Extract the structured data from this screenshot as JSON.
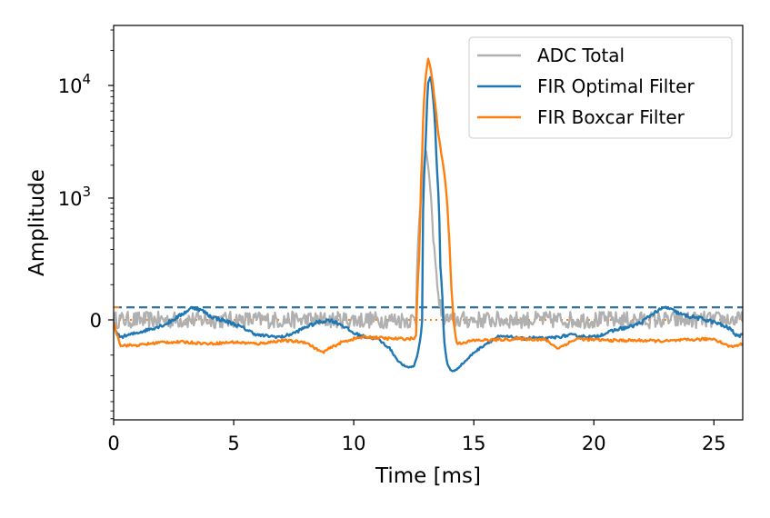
{
  "chart_data": {
    "type": "line",
    "title": "",
    "xlabel": "Time [ms]",
    "ylabel": "Amplitude",
    "xlim": [
      0,
      26.2
    ],
    "yscale": "symlog",
    "yticks": [
      {
        "value": 0,
        "label": "0"
      },
      {
        "value": 1000,
        "label": "10",
        "exp": "3"
      },
      {
        "value": 10000,
        "label": "10",
        "exp": "4"
      }
    ],
    "xticks": [
      {
        "value": 0,
        "label": "0"
      },
      {
        "value": 5,
        "label": "5"
      },
      {
        "value": 10,
        "label": "10"
      },
      {
        "value": 15,
        "label": "15"
      },
      {
        "value": 20,
        "label": "20"
      },
      {
        "value": 25,
        "label": "25"
      }
    ],
    "legend_position": "top-right",
    "series": [
      {
        "name": "ADC Total",
        "color": "#b0b0b0",
        "noise_amp": 18,
        "baseline": 0,
        "x": [
          0,
          12.6,
          12.85,
          13.0,
          13.15,
          13.3,
          13.5,
          13.7,
          13.9,
          26.2
        ],
        "y": [
          0,
          0,
          1200,
          2800,
          1500,
          400,
          60,
          10,
          0,
          0
        ]
      },
      {
        "name": "FIR Optimal Filter",
        "color": "#1f77b4",
        "threshold": 28,
        "x": [
          0,
          0.1,
          0.3,
          0.8,
          1.5,
          2.2,
          2.8,
          3.3,
          3.7,
          4.0,
          4.5,
          5.0,
          5.5,
          6.0,
          6.5,
          7.0,
          7.5,
          8.0,
          8.5,
          9.0,
          9.5,
          10.0,
          10.5,
          11.0,
          11.5,
          11.9,
          12.2,
          12.5,
          12.7,
          12.85,
          13.0,
          13.1,
          13.2,
          13.3,
          13.45,
          13.6,
          13.75,
          13.9,
          14.05,
          14.2,
          14.4,
          14.7,
          15.0,
          15.5,
          16.0,
          16.5,
          17.0,
          17.5,
          18.0,
          18.5,
          19.0,
          19.5,
          20.0,
          20.5,
          21.0,
          21.5,
          22.0,
          22.5,
          23.0,
          23.3,
          23.7,
          24.2,
          24.7,
          25.2,
          25.7,
          26.0,
          26.2
        ],
        "y": [
          0,
          -30,
          -40,
          -32,
          -20,
          -8,
          10,
          28,
          20,
          8,
          0,
          -8,
          -20,
          -35,
          -38,
          -40,
          -30,
          -15,
          -5,
          0,
          -10,
          -30,
          -40,
          -45,
          -75,
          -130,
          -155,
          -150,
          -80,
          0,
          3000,
          10500,
          12000,
          8000,
          2000,
          200,
          -40,
          -140,
          -170,
          -175,
          -150,
          -120,
          -90,
          -60,
          -40,
          -40,
          -45,
          -42,
          -45,
          -40,
          -35,
          -38,
          -40,
          -30,
          -20,
          -15,
          -5,
          15,
          28,
          20,
          10,
          5,
          0,
          -8,
          -20,
          -40,
          -30
        ]
      },
      {
        "name": "FIR Boxcar Filter",
        "color": "#ff7f0e",
        "threshold": 28,
        "x": [
          0,
          0.3,
          1.0,
          2.0,
          3.0,
          4.0,
          5.0,
          6.0,
          7.0,
          8.0,
          8.7,
          9.0,
          9.5,
          10.0,
          10.5,
          11.0,
          11.5,
          12.0,
          12.4,
          12.6,
          12.75,
          12.85,
          13.0,
          13.1,
          13.2,
          13.35,
          13.5,
          13.65,
          13.8,
          13.95,
          14.05,
          14.15,
          14.3,
          15.0,
          16.0,
          17.0,
          18.0,
          18.5,
          19.0,
          19.3,
          20.0,
          21.0,
          22.0,
          23.0,
          24.0,
          25.0,
          25.7,
          26.2
        ],
        "y": [
          -5,
          -65,
          -65,
          -55,
          -55,
          -60,
          -55,
          -60,
          -50,
          -55,
          -90,
          -75,
          -55,
          -45,
          -40,
          -42,
          -45,
          -45,
          -45,
          -40,
          300,
          2500,
          12000,
          17000,
          14000,
          8000,
          4000,
          2500,
          1500,
          500,
          100,
          0,
          -60,
          -50,
          -48,
          -45,
          -48,
          -75,
          -55,
          -45,
          -48,
          -50,
          -50,
          -52,
          -48,
          -45,
          -70,
          -60
        ]
      }
    ]
  }
}
